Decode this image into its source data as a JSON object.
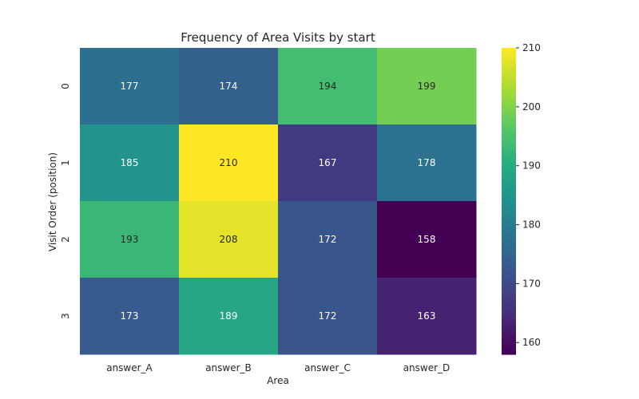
{
  "chart_data": {
    "type": "heatmap",
    "title": "Frequency of Area Visits by start",
    "xlabel": "Area",
    "ylabel": "Visit Order (position)",
    "x_categories": [
      "answer_A",
      "answer_B",
      "answer_C",
      "answer_D"
    ],
    "y_categories": [
      "0",
      "1",
      "2",
      "3"
    ],
    "values": [
      [
        177,
        174,
        194,
        199
      ],
      [
        185,
        210,
        167,
        178
      ],
      [
        193,
        208,
        172,
        158
      ],
      [
        173,
        189,
        172,
        163
      ]
    ],
    "colormap": "viridis",
    "colorbar": {
      "range": [
        158,
        210
      ],
      "ticks": [
        160,
        170,
        180,
        190,
        200,
        210
      ]
    },
    "annotate": true
  }
}
